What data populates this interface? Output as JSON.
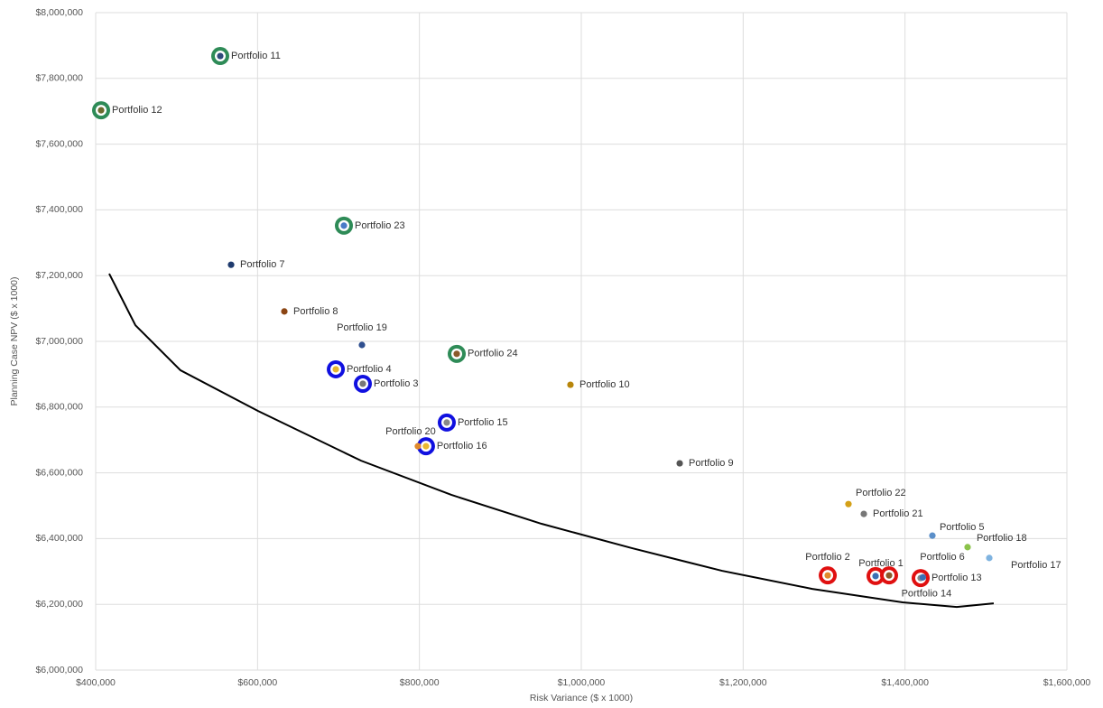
{
  "chart_data": {
    "type": "scatter",
    "xlabel": "Risk Variance ($ x 1000)",
    "ylabel": "Planning Case NPV ($ x 1000)",
    "xlim": [
      400000,
      1600000
    ],
    "ylim": [
      6000000,
      8000000
    ],
    "xticks": [
      {
        "value": 400000,
        "label": "$400,000"
      },
      {
        "value": 600000,
        "label": "$600,000"
      },
      {
        "value": 800000,
        "label": "$800,000"
      },
      {
        "value": 1000000,
        "label": "$1,000,000"
      },
      {
        "value": 1200000,
        "label": "$1,200,000"
      },
      {
        "value": 1400000,
        "label": "$1,400,000"
      },
      {
        "value": 1600000,
        "label": "$1,600,000"
      }
    ],
    "yticks": [
      {
        "value": 6000000,
        "label": "$6,000,000"
      },
      {
        "value": 6200000,
        "label": "$6,200,000"
      },
      {
        "value": 6400000,
        "label": "$6,400,000"
      },
      {
        "value": 6600000,
        "label": "$6,600,000"
      },
      {
        "value": 6800000,
        "label": "$6,800,000"
      },
      {
        "value": 7000000,
        "label": "$7,000,000"
      },
      {
        "value": 7200000,
        "label": "$7,200,000"
      },
      {
        "value": 7400000,
        "label": "$7,400,000"
      },
      {
        "value": 7600000,
        "label": "$7,600,000"
      },
      {
        "value": 7800000,
        "label": "$7,800,000"
      },
      {
        "value": 8000000,
        "label": "$8,000,000"
      }
    ],
    "grid": true,
    "labels": [
      "Portfolio 1",
      "Portfolio 2",
      "Portfolio 3",
      "Portfolio 4",
      "Portfolio 5",
      "Portfolio 6",
      "Portfolio 7",
      "Portfolio 8",
      "Portfolio 9",
      "Portfolio 10",
      "Portfolio 11",
      "Portfolio 12",
      "Portfolio 13",
      "Portfolio 14",
      "Portfolio 15",
      "Portfolio 16",
      "Portfolio 17",
      "Portfolio 18",
      "Portfolio 19",
      "Portfolio 20",
      "Portfolio 21",
      "Portfolio 22",
      "Portfolio 23",
      "Portfolio 24"
    ],
    "x": [
      1363600,
      1304500,
      730100,
      696700,
      1433800,
      1380300,
      567300,
      633100,
      1121600,
      986600,
      553900,
      406700,
      1419300,
      1422000,
      833800,
      808100,
      1504100,
      1477300,
      729000,
      798100,
      1349100,
      1330100,
      706700,
      846100
    ],
    "y": [
      6286000,
      6288000,
      6871000,
      6915000,
      6409000,
      6288000,
      7233000,
      7091000,
      6629000,
      6868000,
      7868000,
      7703000,
      6280000,
      6282000,
      6753000,
      6681000,
      6341000,
      6374000,
      6989000,
      6681000,
      6475000,
      6505000,
      7352000,
      6962000
    ],
    "colors": [
      "#3a6fb5",
      "#e08a2c",
      "#777777",
      "#e8b730",
      "#5b8fc9",
      "#8b5a2b",
      "#1f3b6e",
      "#8b4513",
      "#555555",
      "#b8860b",
      "#2e4a7a",
      "#6b6b2e",
      "#888888",
      "#3a6fb5",
      "#888888",
      "#e8b730",
      "#7fb3e0",
      "#8bc34a",
      "#2f4f8f",
      "#e08a2c",
      "#777777",
      "#d4a017",
      "#4a7bc8",
      "#8b5a2b"
    ],
    "ring_colors": [
      "#e01010",
      "#e01010",
      "#1010e0",
      "#1010e0",
      null,
      "#e01010",
      null,
      null,
      null,
      null,
      "#2e8b57",
      "#2e8b57",
      "#e01010",
      null,
      "#1010e0",
      "#1010e0",
      null,
      null,
      null,
      null,
      null,
      null,
      "#2e8b57",
      "#2e8b57"
    ],
    "frontier": {
      "color": "#000000",
      "x": [
        416700,
        449100,
        504800,
        600700,
        727900,
        839400,
        950900,
        1062400,
        1173900,
        1285400,
        1397000,
        1463900,
        1509600
      ],
      "y": [
        7206000,
        7049000,
        6912000,
        6788000,
        6637000,
        6533000,
        6445000,
        6371000,
        6302000,
        6247000,
        6206000,
        6192000,
        6203000
      ]
    }
  }
}
